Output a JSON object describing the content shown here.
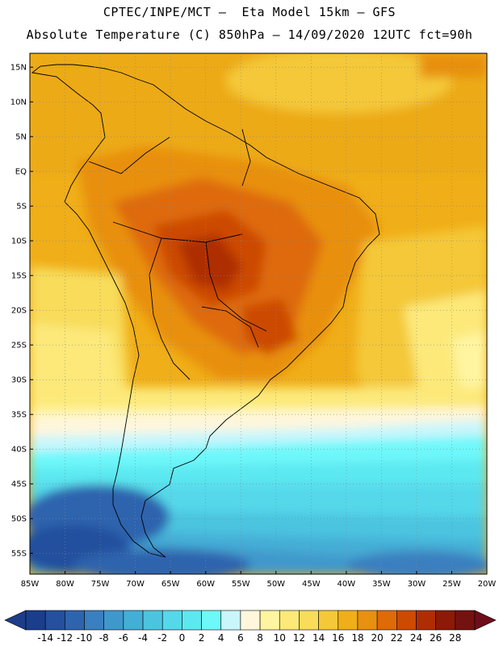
{
  "header": {
    "title_line1": "CPTEC/INPE/MCT –  Eta Model 15km – GFS",
    "title_line2": "Absolute Temperature (C) 850hPa – 14/09/2020 12UTC fct=90h"
  },
  "map": {
    "lon_range": [
      -85,
      -20
    ],
    "lat_range": [
      -58,
      17
    ],
    "grid": "dotted",
    "lat_labels": [
      "15N",
      "10N",
      "5N",
      "EQ",
      "5S",
      "10S",
      "15S",
      "20S",
      "25S",
      "30S",
      "35S",
      "40S",
      "45S",
      "50S",
      "55S"
    ],
    "lat_values": [
      15,
      10,
      5,
      0,
      -5,
      -10,
      -15,
      -20,
      -25,
      -30,
      -35,
      -40,
      -45,
      -50,
      -55
    ],
    "lon_labels": [
      "85W",
      "80W",
      "75W",
      "70W",
      "65W",
      "60W",
      "55W",
      "50W",
      "45W",
      "40W",
      "35W",
      "30W",
      "25W",
      "20W"
    ],
    "lon_values": [
      -85,
      -80,
      -75,
      -70,
      -65,
      -60,
      -55,
      -50,
      -45,
      -40,
      -35,
      -30,
      -25,
      -20
    ]
  },
  "colorbar": {
    "labels": [
      "-14",
      "-12",
      "-10",
      "-8",
      "-6",
      "-4",
      "-2",
      "0",
      "2",
      "4",
      "6",
      "8",
      "10",
      "12",
      "14",
      "16",
      "18",
      "20",
      "22",
      "24",
      "26",
      "28"
    ],
    "colors": [
      "#1a3e8c",
      "#24509e",
      "#2e64ae",
      "#3a7fc0",
      "#3f98cc",
      "#44aed6",
      "#4cc4e0",
      "#55d8ea",
      "#5ce8f0",
      "#6ef8fa",
      "#c8f6fc",
      "#fff6dc",
      "#fff5a0",
      "#fce97a",
      "#f8dc5a",
      "#f4c838",
      "#f0ae18",
      "#e89010",
      "#de6a08",
      "#cc4a04",
      "#ae2e02",
      "#8c1a06",
      "#741210"
    ],
    "left_arrow_color": "#1e3c88",
    "right_arrow_color": "#6e0e1a"
  }
}
